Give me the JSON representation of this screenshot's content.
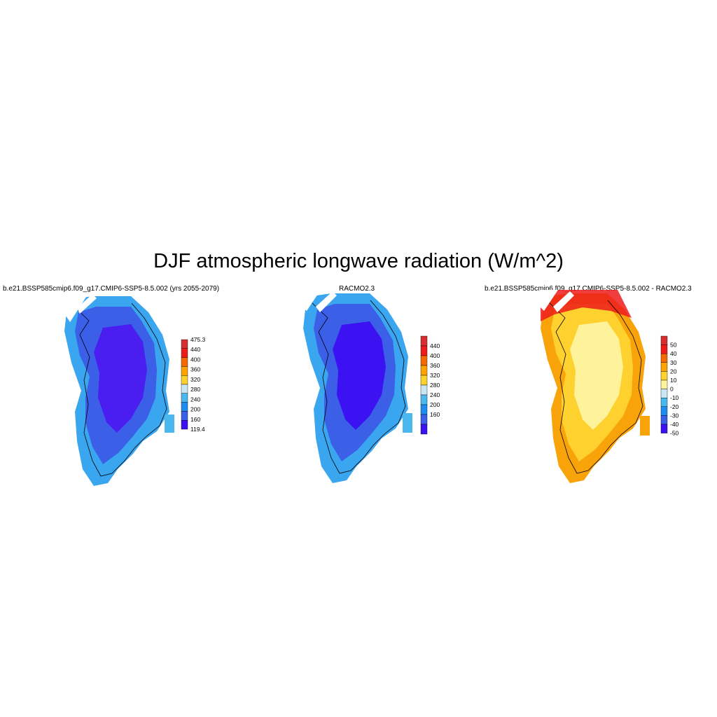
{
  "title": "DJF atmospheric longwave radiation (W/m^2)",
  "panels": [
    {
      "title": "b.e21.BSSP585cmip6.f09_g17.CMIP6-SSP5-8.5.002 (yrs 2055-2079)",
      "colorbar": {
        "labels": [
          "475.3",
          "440",
          "400",
          "360",
          "320",
          "280",
          "240",
          "200",
          "160",
          "119.4"
        ],
        "colors": [
          "#d62f2f",
          "#ee1b1b",
          "#f56a00",
          "#fea300",
          "#fed12e",
          "#c8e6f4",
          "#4ab8ee",
          "#1f8cf0",
          "#3b5fe6",
          "#3c12f2"
        ]
      },
      "map": {
        "interior": "#4a1ef0",
        "mid": "#3b5fe6",
        "edge": "#3aa6ef",
        "region": "Greenland"
      }
    },
    {
      "title": "RACMO2.3",
      "colorbar": {
        "labels": [
          "440",
          "400",
          "360",
          "320",
          "280",
          "240",
          "200",
          "160"
        ],
        "colors": [
          "#d62f2f",
          "#ee1b1b",
          "#f56a00",
          "#fea300",
          "#fed12e",
          "#c8e6f4",
          "#4ab8ee",
          "#1f8cf0",
          "#3b5fe6",
          "#3c12f2"
        ]
      },
      "map": {
        "interior": "#3c12f2",
        "mid": "#3b5fe6",
        "edge": "#3aa6ef",
        "region": "Greenland"
      }
    },
    {
      "title": "b.e21.BSSP585cmip6.f09_g17.CMIP6-SSP5-8.5.002 - RACMO2.3",
      "colorbar": {
        "labels": [
          "50",
          "40",
          "30",
          "20",
          "10",
          "0",
          "-10",
          "-20",
          "-30",
          "-40",
          "-50"
        ],
        "colors": [
          "#d62f2f",
          "#ee1b1b",
          "#f56a00",
          "#fea300",
          "#fed12e",
          "#fef29a",
          "#c8e6f4",
          "#4ab8ee",
          "#1f8cf0",
          "#3b5fe6",
          "#3c12f2"
        ]
      },
      "map": {
        "interior": "#fef29a",
        "mid": "#fed12e",
        "edge": "#f8a30a",
        "region": "Greenland"
      }
    }
  ]
}
